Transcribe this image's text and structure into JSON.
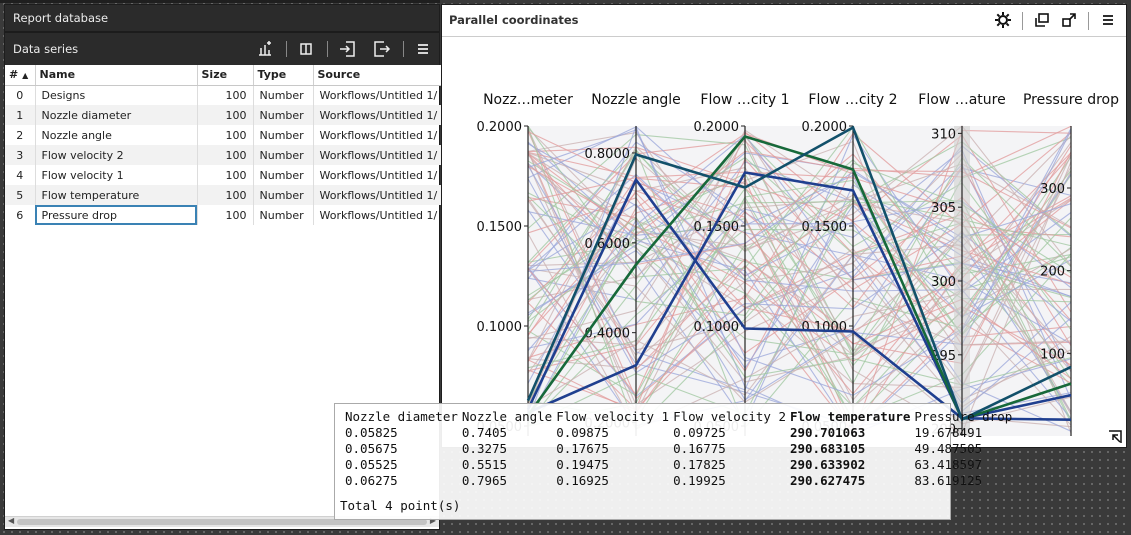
{
  "left_panel": {
    "title": "Report database",
    "toolbar_label": "Data series",
    "toolbar_icons": [
      "chart-add-icon",
      "column-icon",
      "import-icon",
      "export-icon",
      "menu-icon"
    ],
    "columns": [
      "#",
      "Name",
      "Size",
      "Type",
      "Source"
    ],
    "sort_indicator": "▲",
    "rows": [
      {
        "index": "0",
        "name": "Designs",
        "size": "100",
        "type": "Number",
        "source": "Workflows/Untitled 1/"
      },
      {
        "index": "1",
        "name": "Nozzle diameter",
        "size": "100",
        "type": "Number",
        "source": "Workflows/Untitled 1/"
      },
      {
        "index": "2",
        "name": "Nozzle angle",
        "size": "100",
        "type": "Number",
        "source": "Workflows/Untitled 1/"
      },
      {
        "index": "3",
        "name": "Flow velocity 2",
        "size": "100",
        "type": "Number",
        "source": "Workflows/Untitled 1/"
      },
      {
        "index": "4",
        "name": "Flow velocity 1",
        "size": "100",
        "type": "Number",
        "source": "Workflows/Untitled 1/"
      },
      {
        "index": "5",
        "name": "Flow temperature",
        "size": "100",
        "type": "Number",
        "source": "Workflows/Untitled 1/"
      },
      {
        "index": "6",
        "name": "Pressure drop",
        "size": "100",
        "type": "Number",
        "source": "Workflows/Untitled 1/"
      }
    ],
    "selected_row": 6
  },
  "right_panel": {
    "title": "Parallel coordinates",
    "toolbar_icons": [
      "settings-icon",
      "popout-icon",
      "maximize-icon",
      "menu-icon"
    ]
  },
  "chart_data": {
    "type": "parallel-coordinates",
    "axes": [
      {
        "label": "Nozz…meter",
        "ticks": [
          "0.2000",
          "0.1500",
          "0.1000",
          "0.0500"
        ],
        "range": [
          0.045,
          0.2
        ]
      },
      {
        "label": "Nozzle angle",
        "ticks": [
          "0.8000",
          "0.6000",
          "0.4000",
          "0.2000"
        ],
        "range": [
          0.17,
          0.86
        ]
      },
      {
        "label": "Flow …city 1",
        "ticks": [
          "0.2000",
          "0.1500",
          "0.1000",
          "0.0500"
        ],
        "range": [
          0.045,
          0.2
        ]
      },
      {
        "label": "Flow …city 2",
        "ticks": [
          "0.2000",
          "0.1500",
          "0.1000",
          "0.0500"
        ],
        "range": [
          0.045,
          0.2
        ]
      },
      {
        "label": "Flow …ature",
        "ticks": [
          "310",
          "305",
          "300",
          "295",
          "290"
        ],
        "range": [
          289.5,
          310.5
        ]
      },
      {
        "label": "Pressure drop",
        "ticks": [
          "300",
          "200",
          "100"
        ],
        "range": [
          0,
          375
        ]
      }
    ],
    "highlighted": [
      {
        "color": "#1f3f8f",
        "values": [
          0.05825,
          0.7405,
          0.09875,
          0.09725,
          290.701063,
          19.678491
        ]
      },
      {
        "color": "#1f3f8f",
        "values": [
          0.05675,
          0.3275,
          0.17675,
          0.16775,
          290.683105,
          49.487505
        ]
      },
      {
        "color": "#17693a",
        "values": [
          0.05525,
          0.5515,
          0.19475,
          0.17825,
          290.633902,
          63.418597
        ]
      },
      {
        "color": "#12506a",
        "values": [
          0.06275,
          0.7965,
          0.16925,
          0.19925,
          290.627475,
          83.619125
        ]
      }
    ],
    "background_colors": [
      "#9aa6d9",
      "#e29a9a",
      "#9fc79f",
      "#c9b0b0"
    ]
  },
  "tooltip": {
    "columns": [
      {
        "header": "Nozzle diameter",
        "values": [
          "0.05825",
          "0.05675",
          "0.05525",
          "0.06275"
        ]
      },
      {
        "header": "Nozzle angle",
        "values": [
          "0.7405",
          "0.3275",
          "0.5515",
          "0.7965"
        ]
      },
      {
        "header": "Flow velocity 1",
        "values": [
          "0.09875",
          "0.17675",
          "0.19475",
          "0.16925"
        ]
      },
      {
        "header": "Flow velocity 2",
        "values": [
          "0.09725",
          "0.16775",
          "0.17825",
          "0.19925"
        ]
      },
      {
        "header": "Flow temperature",
        "values": [
          "290.701063",
          "290.683105",
          "290.633902",
          "290.627475"
        ]
      },
      {
        "header": "Pressure drop",
        "values": [
          "19.678491",
          "49.487505",
          "63.418597",
          "83.619125"
        ]
      }
    ],
    "total": "Total 4 point(s)"
  }
}
